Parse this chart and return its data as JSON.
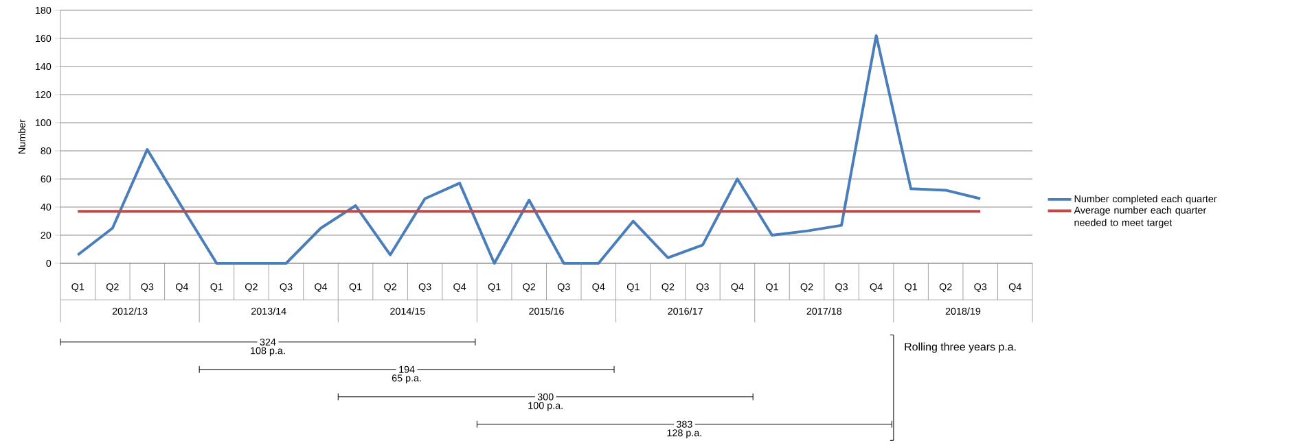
{
  "chart_data": {
    "type": "line",
    "ylabel": "Number",
    "categories": [
      "Q1",
      "Q2",
      "Q3",
      "Q4",
      "Q1",
      "Q2",
      "Q3",
      "Q4",
      "Q1",
      "Q2",
      "Q3",
      "Q4",
      "Q1",
      "Q2",
      "Q3",
      "Q4",
      "Q1",
      "Q2",
      "Q3",
      "Q4",
      "Q1",
      "Q2",
      "Q3",
      "Q4",
      "Q1",
      "Q2",
      "Q3",
      "Q4"
    ],
    "series": [
      {
        "name": "Number completed each quarter",
        "color": "#4a7ebb",
        "values": [
          6,
          25,
          81,
          40,
          0,
          0,
          0,
          25,
          41,
          6,
          46,
          57,
          0,
          45,
          0,
          0,
          30,
          4,
          13,
          60,
          20,
          23,
          27,
          162,
          53,
          52,
          46,
          null
        ]
      },
      {
        "name": "Average number each quarter needed to meet target",
        "color": "#be4b48",
        "values": [
          37,
          37,
          37,
          37,
          37,
          37,
          37,
          37,
          37,
          37,
          37,
          37,
          37,
          37,
          37,
          37,
          37,
          37,
          37,
          37,
          37,
          37,
          37,
          37,
          37,
          37,
          37,
          null
        ]
      }
    ],
    "ylim": [
      0,
      180
    ],
    "yticks": [
      0,
      20,
      40,
      60,
      80,
      100,
      120,
      140,
      160,
      180
    ],
    "grid": "y",
    "legend": "right",
    "marker": "none",
    "line_style": "solid",
    "annotations": [
      "2012/13",
      "2013/14",
      "2014/15",
      "2015/16",
      "2016/17",
      "2017/18",
      "2018/19",
      "324",
      "108 p.a.",
      "194",
      "65 p.a.",
      "300",
      "100 p.a.",
      "383",
      "128 p.a.",
      "Rolling three years p.a."
    ]
  }
}
